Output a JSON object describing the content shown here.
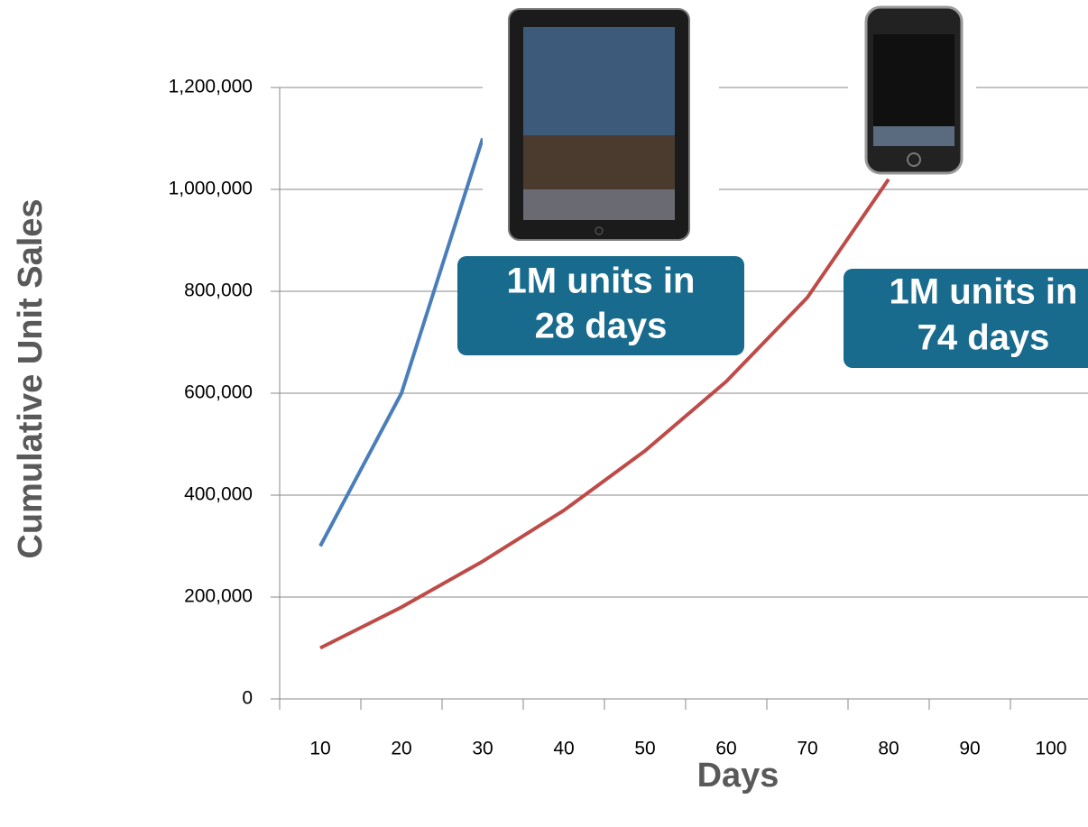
{
  "chart_data": {
    "type": "line",
    "x_label": "Days",
    "y_label": "Cumulative Unit Sales",
    "categories": [
      10,
      20,
      30,
      40,
      50,
      60,
      70,
      80,
      90,
      100
    ],
    "series": [
      {
        "color": "#4a7ebb",
        "values": [
          300000,
          600000,
          1100000,
          null,
          null,
          null,
          null,
          null,
          null,
          null
        ]
      },
      {
        "color": "#be4b48",
        "values": [
          100000,
          180000,
          270000,
          370000,
          487000,
          623000,
          788000,
          1020000,
          null,
          null
        ]
      }
    ],
    "ylim": [
      0,
      1200000
    ],
    "yticks": [
      0,
      {
        "value": 200000,
        "label": "200,000"
      },
      {
        "value": 400000,
        "label": "400,000"
      },
      {
        "value": 600000,
        "label": "600,000"
      },
      {
        "value": 800000,
        "label": "800,000"
      },
      {
        "value": 1000000,
        "label": "1,000,000"
      },
      {
        "value": 1200000,
        "label": "1,200,000"
      }
    ],
    "grid": true,
    "annotations": [
      [
        "1M units in",
        "28 days"
      ],
      [
        "1M units in",
        "74 days"
      ]
    ]
  }
}
